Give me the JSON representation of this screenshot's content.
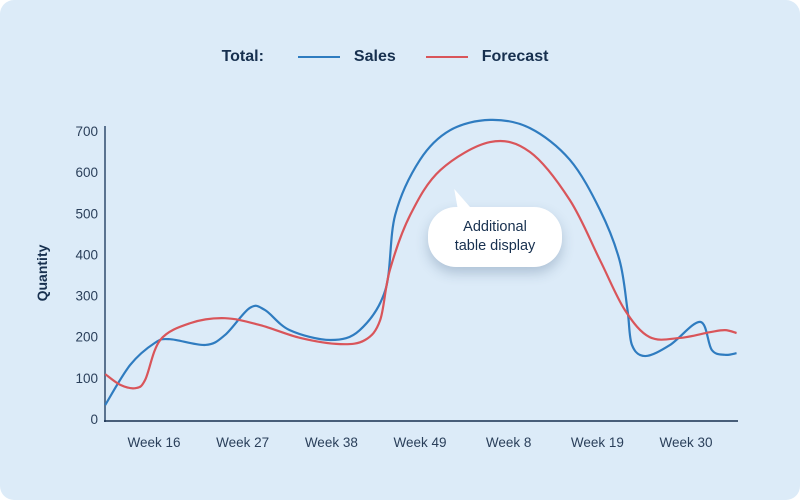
{
  "chart_data": {
    "type": "line",
    "legend_title": "Total:",
    "legend_position": "top",
    "ylabel": "Quantity",
    "xlabel": "",
    "ylim": [
      0,
      700
    ],
    "yticks": [
      0,
      100,
      200,
      300,
      400,
      500,
      600,
      700
    ],
    "categories": [
      "Week 16",
      "Week 27",
      "Week 38",
      "Week 49",
      "Week 8",
      "Week 19",
      "Week 30"
    ],
    "x_note_units": "category index (0 = Week 16)",
    "grid": false,
    "annotation": {
      "line1": "Additional",
      "line2": "table display"
    },
    "series": [
      {
        "name": "Sales",
        "color": "#2f7cc0",
        "points": [
          [
            -0.55,
            34
          ],
          [
            -0.27,
            131
          ],
          [
            0.01,
            185
          ],
          [
            0.18,
            194
          ],
          [
            0.58,
            180
          ],
          [
            0.8,
            204
          ],
          [
            1.08,
            270
          ],
          [
            1.25,
            265
          ],
          [
            1.53,
            216
          ],
          [
            1.99,
            192
          ],
          [
            2.32,
            216
          ],
          [
            2.61,
            314
          ],
          [
            2.72,
            496
          ],
          [
            3.0,
            630
          ],
          [
            3.34,
            702
          ],
          [
            3.79,
            727
          ],
          [
            4.24,
            707
          ],
          [
            4.69,
            630
          ],
          [
            5.03,
            508
          ],
          [
            5.25,
            386
          ],
          [
            5.34,
            265
          ],
          [
            5.39,
            180
          ],
          [
            5.54,
            153
          ],
          [
            5.82,
            180
          ],
          [
            6.16,
            236
          ],
          [
            6.29,
            168
          ],
          [
            6.44,
            156
          ],
          [
            6.57,
            160
          ]
        ]
      },
      {
        "name": "Forecast",
        "color": "#d9555a",
        "points": [
          [
            -0.55,
            109
          ],
          [
            -0.38,
            83
          ],
          [
            -0.21,
            75
          ],
          [
            -0.1,
            95
          ],
          [
            0.07,
            192
          ],
          [
            0.41,
            233
          ],
          [
            0.8,
            245
          ],
          [
            1.2,
            228
          ],
          [
            1.65,
            197
          ],
          [
            2.1,
            182
          ],
          [
            2.38,
            192
          ],
          [
            2.55,
            240
          ],
          [
            2.66,
            362
          ],
          [
            2.89,
            496
          ],
          [
            3.23,
            605
          ],
          [
            3.79,
            673
          ],
          [
            4.24,
            649
          ],
          [
            4.69,
            532
          ],
          [
            5.03,
            386
          ],
          [
            5.31,
            265
          ],
          [
            5.59,
            199
          ],
          [
            5.93,
            197
          ],
          [
            6.27,
            211
          ],
          [
            6.44,
            216
          ],
          [
            6.57,
            209
          ]
        ]
      }
    ]
  }
}
